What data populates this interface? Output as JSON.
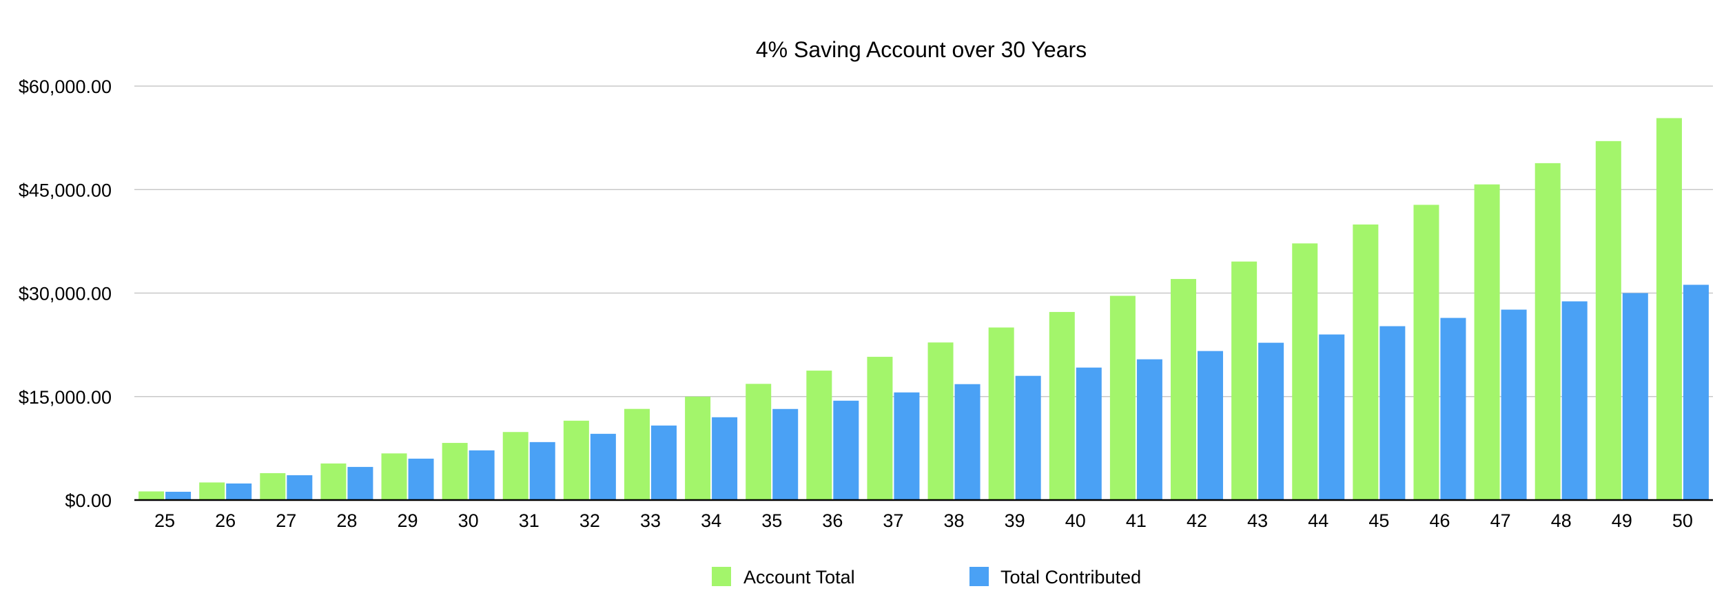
{
  "chart_data": {
    "type": "bar",
    "title": "4% Saving Account over 30 Years",
    "xlabel": "",
    "ylabel": "",
    "categories": [
      "25",
      "26",
      "27",
      "28",
      "29",
      "30",
      "31",
      "32",
      "33",
      "34",
      "35",
      "36",
      "37",
      "38",
      "39",
      "40",
      "41",
      "42",
      "43",
      "44",
      "45",
      "46",
      "47",
      "48",
      "49",
      "50"
    ],
    "series": [
      {
        "name": "Account Total",
        "color": "#a3f56b",
        "values": [
          1250,
          2550,
          3900,
          5300,
          6760,
          8280,
          9860,
          11500,
          13210,
          14990,
          16840,
          18760,
          20760,
          22840,
          25010,
          27260,
          29600,
          32040,
          34570,
          37200,
          39940,
          42790,
          45750,
          48830,
          52030,
          55360
        ]
      },
      {
        "name": "Total Contributed",
        "color": "#4aa1f5",
        "values": [
          1200,
          2400,
          3600,
          4800,
          6000,
          7200,
          8400,
          9600,
          10800,
          12000,
          13200,
          14400,
          15600,
          16800,
          18000,
          19200,
          20400,
          21600,
          22800,
          24000,
          25200,
          26400,
          27600,
          28800,
          30000,
          31200
        ]
      }
    ],
    "ylim": [
      0,
      60000
    ],
    "yticks": [
      {
        "value": 0,
        "label": "$0.00"
      },
      {
        "value": 15000,
        "label": "$15,000.00"
      },
      {
        "value": 30000,
        "label": "$30,000.00"
      },
      {
        "value": 45000,
        "label": "$45,000.00"
      },
      {
        "value": 60000,
        "label": "$60,000.00"
      }
    ],
    "grid": true,
    "legend_position": "bottom"
  }
}
